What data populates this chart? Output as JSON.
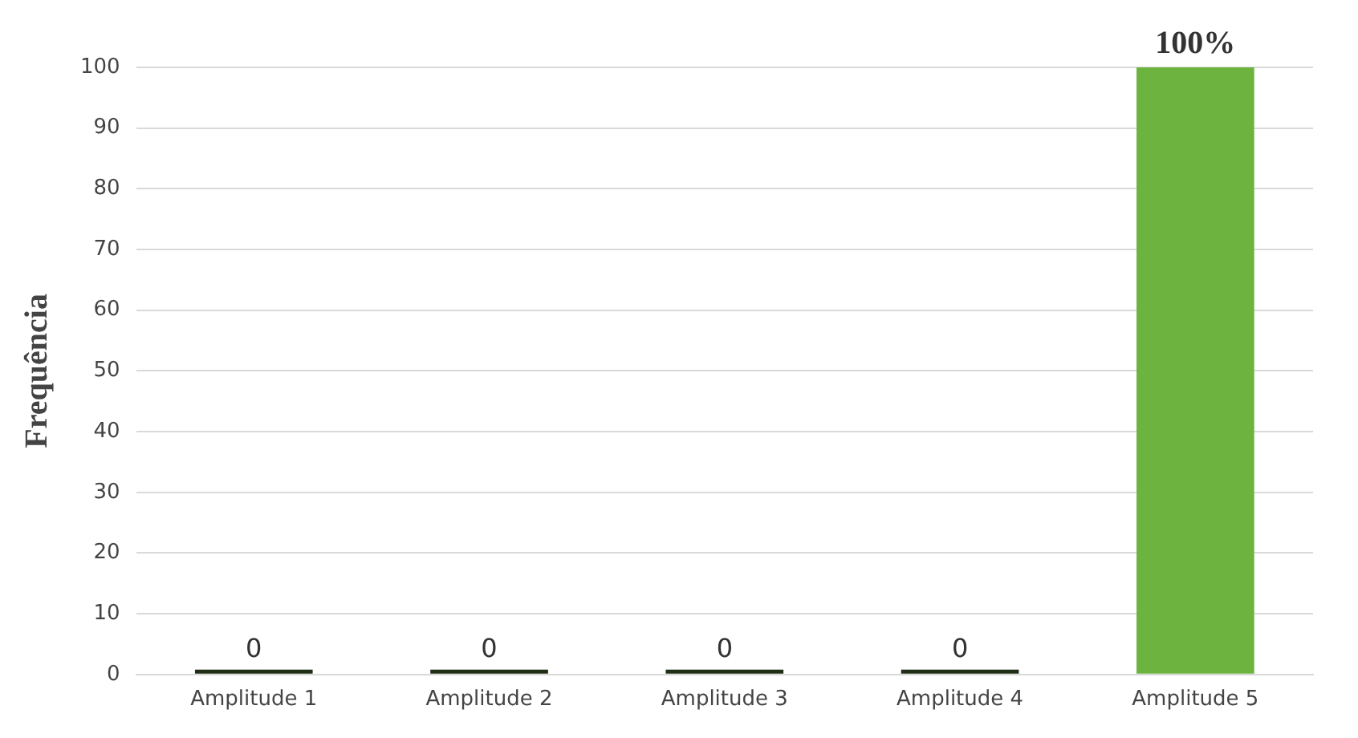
{
  "chart_data": {
    "type": "bar",
    "ylabel": "Frequência",
    "categories": [
      "Amplitude 1",
      "Amplitude 2",
      "Amplitude 3",
      "Amplitude 4",
      "Amplitude 5"
    ],
    "values": [
      0,
      0,
      0,
      0,
      100
    ],
    "colors": [
      "#1f2e15",
      "#1f2e15",
      "#1f2e15",
      "#1f2e15",
      "#6db33f"
    ],
    "value_labels": [
      "0",
      "0",
      "0",
      "0",
      "100%"
    ],
    "ylim": [
      0,
      100
    ],
    "yticks": [
      0,
      10,
      20,
      30,
      40,
      50,
      60,
      70,
      80,
      90,
      100
    ],
    "grid": "y"
  }
}
